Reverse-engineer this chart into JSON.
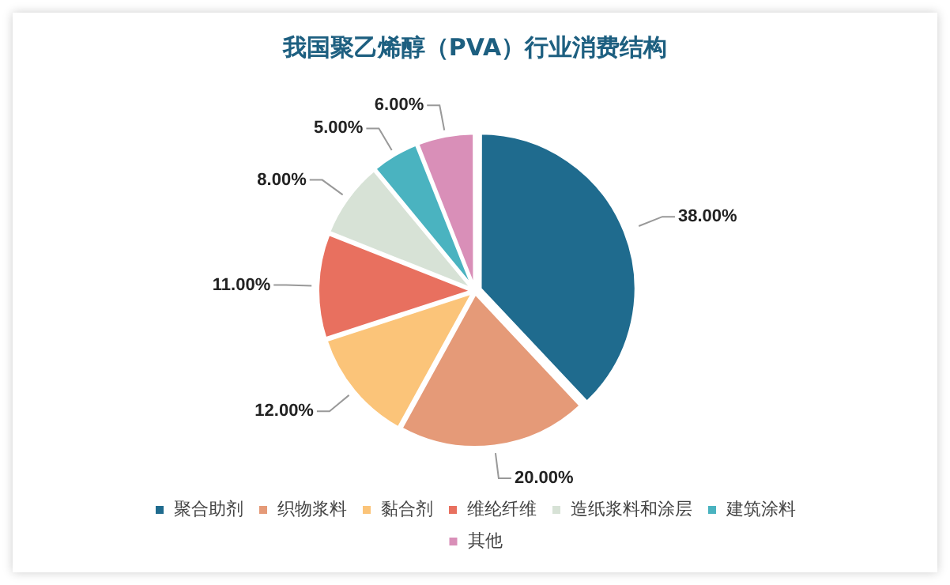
{
  "chart_data": {
    "type": "pie",
    "title": "我国聚乙烯醇（PVA）行业消费结构",
    "categories": [
      "聚合助剂",
      "织物浆料",
      "黏合剂",
      "维纶纤维",
      "造纸浆料和涂层",
      "建筑涂料",
      "其他"
    ],
    "values": [
      38,
      20,
      12,
      11,
      8,
      5,
      6
    ],
    "colors": [
      "#1f6b8e",
      "#e59a78",
      "#fbc479",
      "#e8705f",
      "#d7e2d6",
      "#4ab3c0",
      "#d98fb8"
    ],
    "value_labels": [
      "38.00%",
      "20.00%",
      "12.00%",
      "11.00%",
      "8.00%",
      "5.00%",
      "6.00%"
    ],
    "legend": "bottom"
  }
}
